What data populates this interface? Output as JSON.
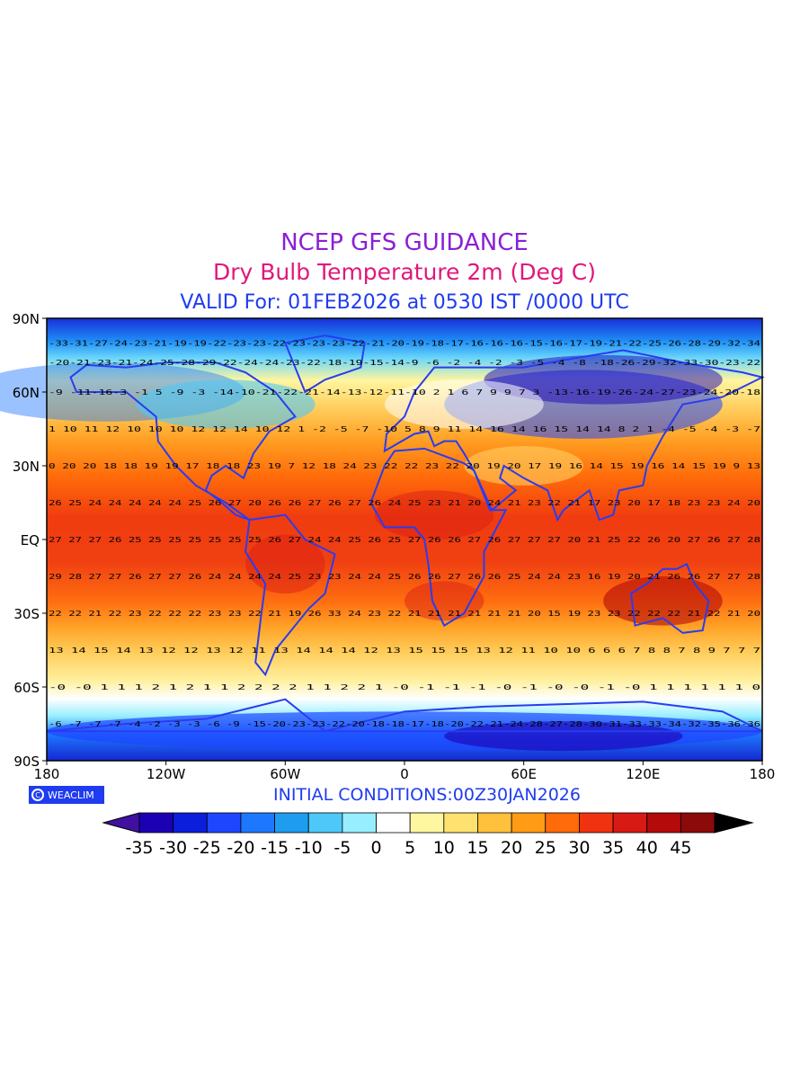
{
  "titles": {
    "line1": "NCEP GFS GUIDANCE",
    "line2": "Dry Bulb Temperature 2m (Deg C)",
    "line3": "VALID For: 01FEB2026 at 0530 IST /0000 UTC"
  },
  "footer": {
    "badge_label": "WEACLIM",
    "badge_icon": "copyright-icon",
    "initial_conditions": "INITIAL CONDITIONS:00Z30JAN2026"
  },
  "map": {
    "y_ticks": [
      "90N",
      "60N",
      "30N",
      "EQ",
      "30S",
      "60S",
      "90S"
    ],
    "y_values": [
      90,
      60,
      30,
      0,
      -30,
      -60,
      -90
    ],
    "x_ticks": [
      "180",
      "120W",
      "60W",
      "0",
      "60E",
      "120E",
      "180"
    ],
    "x_values": [
      -180,
      -120,
      -60,
      0,
      60,
      120,
      180
    ],
    "coastline_color": "#2a3cf0",
    "grid_values_note_color": "#000000",
    "row_labels": [
      {
        "lat": 80,
        "values": "-33-31-27-24-23-21-19-19-22-23-23-22-23-23-23-22-21-20-19-18-17-16-16-16-15-16-17-19-21-22-25-26-28-29-32-34"
      },
      {
        "lat": 72,
        "values": "-20-21-23-21-24-25-28-29-22-24-24-23-22-18-19-15-14-9 -6 -2 -4 -2 -3 -5 -4 -8 -18-26-29-32-33-30-23-22"
      },
      {
        "lat": 60,
        "values": "-9 -11-16-3 -1 5 -9 -3 -14-10-21-22-21-14-13-12-11-10 2 1 6 7 9 9 7 3 -13-16-19-26-24-27-23-24-20-18"
      },
      {
        "lat": 45,
        "values": "1 10 11 12 10 10 10 12 12 14 10 12 1 -2 -5 -7 -10 5 8 9 11 14 16 14 16 15 14 14 8 2 1 -4 -5 -4 -3 -7"
      },
      {
        "lat": 30,
        "values": "0 20 20 18 18 19 19 17 18 18 23 19 7 12 18 24 23 22 22 23 22 20 19 20 17 19 16 14 15 19 16 14 15 19 9 13"
      },
      {
        "lat": 15,
        "values": "26 25 24 24 24 24 24 25 26 27 20 26 26 27 26 27 26 24 25 23 21 20 24 21 23 22 21 17 23 20 17 18 23 23 24 20"
      },
      {
        "lat": 0,
        "values": "27 27 27 26 25 25 25 25 25 25 25 26 27 24 24 25 26 25 27 26 26 27 26 27 27 27 20 21 25 22 26 20 27 26 27 28"
      },
      {
        "lat": -15,
        "values": "29 28 27 27 26 27 27 26 24 24 24 24 25 23 23 24 24 25 26 26 27 26 26 25 24 24 23 16 19 20 21 26 26 27 27 28"
      },
      {
        "lat": -30,
        "values": "22 22 21 22 23 22 22 22 23 23 22 21 19 26 33 24 23 22 21 21 21 21 21 21 20 15 19 23 23 22 22 22 21 22 21 20"
      },
      {
        "lat": -45,
        "values": "13 14 15 14 13 12 12 13 12 11 13 14 14 14 12 13 15 15 15 13 12 11 10 10 6 6 6 7 8 8 7 8 9 7 7 7"
      },
      {
        "lat": -60,
        "values": "-0 -0 1 1 1 2 1 2 1 1 2 2 2 2 1 1 2 2 1 -0 -1 -1 -1 -0 -1 -0 -0 -1 -0 1 1 1 1 1 1 0"
      },
      {
        "lat": -75,
        "values": "-6 -7 -7 -7 -4 -2 -3 -3 -6 -9 -15-20-23-23-22-20-18-18-17-18-20-22-21-24-28-27-28-30-31-33-33-34-32-35-36-36"
      }
    ]
  },
  "colorbar": {
    "labels": [
      "-35",
      "-30",
      "-25",
      "-20",
      "-15",
      "-10",
      "-5",
      "0",
      "5",
      "10",
      "15",
      "20",
      "25",
      "30",
      "35",
      "40",
      "45"
    ],
    "colors": [
      "#1c00b4",
      "#0a1edc",
      "#1e46ff",
      "#1e78ff",
      "#1e9cf0",
      "#4ec8f8",
      "#96eeff",
      "#ffffff",
      "#fff6a0",
      "#ffe170",
      "#ffc03c",
      "#ff9b14",
      "#ff6a0a",
      "#f03210",
      "#d81a14",
      "#b40a0a",
      "#8c0a0a",
      "#000000"
    ],
    "under_color": "#4010a0",
    "over_color": "#000000"
  }
}
